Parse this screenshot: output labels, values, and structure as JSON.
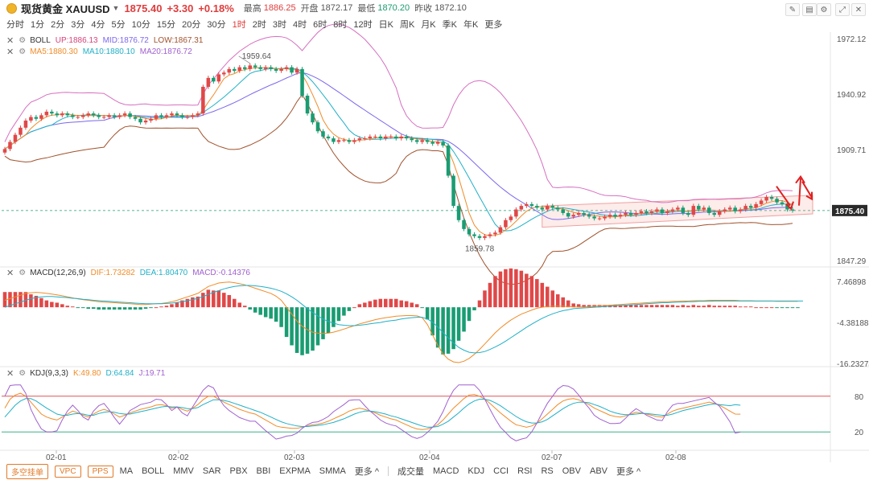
{
  "header": {
    "symbol": "现货黄金 XAUUSD",
    "price": "1875.40",
    "change": "+3.30",
    "change_pct": "+0.18%",
    "high_label": "最高",
    "high": "1886.25",
    "open_label": "开盘",
    "open": "1872.17",
    "low_label": "最低",
    "low": "1870.20",
    "prev_label": "昨收",
    "prev": "1872.10"
  },
  "periods": [
    "分时",
    "1分",
    "2分",
    "3分",
    "4分",
    "5分",
    "10分",
    "15分",
    "20分",
    "30分",
    "1时",
    "2时",
    "3时",
    "4时",
    "6时",
    "8时",
    "12时",
    "日K",
    "周K",
    "月K",
    "季K",
    "年K",
    "更多"
  ],
  "active_period": "1时",
  "indicators": {
    "boll": {
      "name": "BOLL",
      "up": "UP:1886.13",
      "mid": "MID:1876.72",
      "low": "LOW:1867.31"
    },
    "ma": {
      "ma5": "MA5:1880.30",
      "ma10": "MA10:1880.10",
      "ma20": "MA20:1876.72"
    },
    "macd": {
      "name": "MACD(12,26,9)",
      "dif": "DIF:1.73282",
      "dea": "DEA:1.80470",
      "macd": "MACD:-0.14376"
    },
    "kdj": {
      "name": "KDJ(9,3,3)",
      "k": "K:49.80",
      "d": "D:64.84",
      "j": "J:19.71"
    }
  },
  "bottom": {
    "pills": [
      "多空挂单",
      "VPC",
      "PPS"
    ],
    "main_inds": [
      "MA",
      "BOLL",
      "MMV",
      "SAR",
      "PBX",
      "BBI",
      "EXPMA",
      "SMMA",
      "更多 ^"
    ],
    "sub_inds": [
      "成交量",
      "MACD",
      "KDJ",
      "CCI",
      "RSI",
      "RS",
      "OBV",
      "ABV",
      "更多 ^"
    ]
  },
  "chart_data": {
    "type": "candlestick",
    "price_axis": [
      "1972.12",
      "1940.92",
      "1909.71",
      "1875.40",
      "1847.29"
    ],
    "price_range": [
      1847.29,
      1972.12
    ],
    "current_price": "1875.40",
    "annotations": {
      "high": "1959.64",
      "low": "1859.78"
    },
    "x_labels": [
      "02-01",
      "02-02",
      "02-03",
      "02-04",
      "02-07",
      "02-08"
    ],
    "macd_axis": [
      "7.46898",
      "-4.38188",
      "-16.23274"
    ],
    "macd_range": [
      -16.23274,
      7.46898
    ],
    "kdj_axis": [
      "80",
      "20"
    ],
    "kdj_range": [
      0,
      100
    ],
    "closes": [
      1910,
      1914,
      1918,
      1922,
      1926,
      1928,
      1927,
      1929,
      1931,
      1930,
      1929,
      1930,
      1929,
      1928,
      1928,
      1929,
      1930,
      1929,
      1928,
      1928,
      1929,
      1928,
      1929,
      1930,
      1928,
      1927,
      1925,
      1926,
      1927,
      1929,
      1928,
      1929,
      1930,
      1929,
      1928,
      1928,
      1929,
      1930,
      1945,
      1950,
      1948,
      1952,
      1953,
      1955,
      1954,
      1956,
      1955,
      1957,
      1956,
      1955,
      1956,
      1955,
      1954,
      1955,
      1956,
      1953,
      1955,
      1940,
      1930,
      1925,
      1920,
      1917,
      1916,
      1914,
      1915,
      1915,
      1914,
      1915,
      1916,
      1916,
      1917,
      1917,
      1916,
      1917,
      1917,
      1916,
      1917,
      1916,
      1915,
      1914,
      1915,
      1914,
      1913,
      1914,
      1912,
      1895,
      1878,
      1870,
      1865,
      1862,
      1861,
      1860,
      1861,
      1862,
      1863,
      1866,
      1870,
      1872,
      1876,
      1878,
      1879,
      1878,
      1877,
      1876,
      1878,
      1877,
      1876,
      1874,
      1872,
      1873,
      1874,
      1873,
      1872,
      1871,
      1871,
      1872,
      1873,
      1872,
      1873,
      1874,
      1873,
      1874,
      1875,
      1874,
      1875,
      1876,
      1874,
      1875,
      1876,
      1877,
      1874,
      1873,
      1878,
      1876,
      1877,
      1874,
      1873,
      1875,
      1876,
      1877,
      1875,
      1876,
      1878,
      1877,
      1879,
      1881,
      1883,
      1882,
      1880,
      1879,
      1876,
      1875.4
    ],
    "difs": [
      2,
      2.5,
      3,
      3.5,
      4,
      4.2,
      4.3,
      4.2,
      4,
      3.8,
      3.6,
      3.3,
      3,
      2.7,
      2.4,
      2.2,
      2,
      1.8,
      1.6,
      1.5,
      1.4,
      1.3,
      1.2,
      1.1,
      1,
      0.9,
      0.8,
      0.8,
      0.9,
      1,
      1.1,
      1.3,
      1.6,
      2,
      2.5,
      3,
      3.5,
      4,
      5,
      6,
      6.5,
      7,
      7.2,
      7.3,
      7.1,
      6.8,
      6.5,
      6,
      5.5,
      5,
      4.5,
      4,
      3.2,
      2,
      0,
      -2,
      -4,
      -5.5,
      -6.5,
      -7.2,
      -7.5,
      -7.6,
      -7.5,
      -7.2,
      -6.8,
      -6.3,
      -5.8,
      -5.3,
      -4.8,
      -4.4,
      -4,
      -3.6,
      -3.3,
      -3,
      -2.8,
      -2.6,
      -2.5,
      -2.4,
      -2.4,
      -2.5,
      -3,
      -5,
      -8,
      -11,
      -13.5,
      -15,
      -15.8,
      -16,
      -15.6,
      -14.8,
      -13.6,
      -12.2,
      -10.6,
      -9,
      -7.4,
      -6,
      -4.8,
      -3.7,
      -2.8,
      -2,
      -1.4,
      -0.8,
      -0.3,
      0,
      0.2,
      0.3,
      0.3,
      0.3,
      0.2,
      0.1,
      0.1,
      0.1,
      0.2,
      0.3,
      0.4,
      0.5,
      0.6,
      0.7,
      0.8,
      0.9,
      1,
      1.1,
      1.2,
      1.3,
      1.4,
      1.5,
      1.6,
      1.6,
      1.7,
      1.7,
      1.8,
      1.8,
      1.9,
      1.9,
      1.9,
      2,
      2,
      2,
      2,
      2,
      2,
      1.9,
      1.9,
      1.9,
      1.8,
      1.8,
      1.8,
      1.8,
      1.7,
      1.7,
      1.7,
      1.7,
      1.73
    ],
    "deas": [
      0,
      0.5,
      1,
      1.5,
      2,
      2.5,
      2.8,
      3,
      3.1,
      3.1,
      3,
      2.9,
      2.8,
      2.6,
      2.5,
      2.3,
      2.2,
      2,
      1.9,
      1.8,
      1.7,
      1.6,
      1.5,
      1.4,
      1.3,
      1.2,
      1.1,
      1,
      1,
      1,
      1,
      1.1,
      1.2,
      1.4,
      1.6,
      1.9,
      2.2,
      2.6,
      3.1,
      3.7,
      4.3,
      4.8,
      5.3,
      5.7,
      6,
      6.2,
      6.3,
      6.3,
      6.2,
      6,
      5.8,
      5.5,
      5.1,
      4.6,
      3.9,
      3,
      2,
      0.8,
      -0.4,
      -1.5,
      -2.5,
      -3.4,
      -4.1,
      -4.6,
      -5,
      -5.2,
      -5.3,
      -5.3,
      -5.2,
      -5,
      -4.8,
      -4.6,
      -4.4,
      -4.1,
      -3.9,
      -3.7,
      -3.4,
      -3.2,
      -3,
      -2.9,
      -2.9,
      -3.4,
      -4.3,
      -5.7,
      -7.3,
      -8.9,
      -10.3,
      -11.6,
      -12.4,
      -13,
      -13.2,
      -13.1,
      -12.8,
      -12.2,
      -11.5,
      -10.7,
      -9.8,
      -8.8,
      -7.8,
      -6.8,
      -5.8,
      -4.9,
      -4,
      -3.2,
      -2.5,
      -1.9,
      -1.4,
      -1,
      -0.7,
      -0.4,
      -0.3,
      -0.2,
      -0.1,
      0,
      0.1,
      0.2,
      0.3,
      0.4,
      0.5,
      0.6,
      0.7,
      0.8,
      0.9,
      1,
      1.1,
      1.2,
      1.3,
      1.3,
      1.4,
      1.5,
      1.5,
      1.6,
      1.6,
      1.7,
      1.7,
      1.7,
      1.8,
      1.8,
      1.8,
      1.8,
      1.8,
      1.8,
      1.8,
      1.8,
      1.8,
      1.8,
      1.8,
      1.8,
      1.8,
      1.8,
      1.8,
      1.8,
      1.8,
      1.805
    ],
    "ks": [
      60,
      75,
      82,
      85,
      80,
      70,
      60,
      50,
      45,
      42,
      40,
      45,
      50,
      55,
      52,
      48,
      45,
      50,
      55,
      58,
      55,
      50,
      45,
      48,
      52,
      55,
      58,
      60,
      62,
      65,
      66,
      64,
      60,
      62,
      58,
      55,
      60,
      66,
      74,
      80,
      80,
      75,
      70,
      66,
      62,
      58,
      55,
      52,
      50,
      45,
      40,
      35,
      30,
      28,
      27,
      26,
      26,
      28,
      30,
      32,
      33,
      35,
      38,
      42,
      46,
      50,
      55,
      58,
      60,
      58,
      55,
      52,
      48,
      45,
      42,
      40,
      36,
      32,
      28,
      25,
      24,
      25,
      28,
      32,
      40,
      50,
      60,
      68,
      76,
      82,
      83,
      80,
      75,
      68,
      60,
      52,
      45,
      38,
      32,
      30,
      28,
      30,
      35,
      42,
      50,
      58,
      66,
      72,
      75,
      76,
      74,
      70,
      66,
      60,
      56,
      52,
      48,
      46,
      45,
      47,
      50,
      53,
      52,
      50,
      48,
      46,
      45,
      50,
      55,
      58,
      60,
      62,
      64,
      66,
      68,
      70,
      68,
      65,
      60,
      55,
      50,
      49.8
    ],
    "ds": [
      45,
      55,
      65,
      72,
      76,
      76,
      72,
      66,
      60,
      55,
      50,
      48,
      48,
      50,
      51,
      50,
      48,
      48,
      51,
      53,
      54,
      53,
      51,
      50,
      50,
      52,
      54,
      56,
      58,
      60,
      62,
      63,
      62,
      62,
      61,
      59,
      59,
      61,
      66,
      70,
      74,
      74,
      73,
      71,
      68,
      65,
      62,
      59,
      56,
      53,
      49,
      45,
      41,
      37,
      34,
      32,
      30,
      29,
      29,
      30,
      31,
      32,
      34,
      36,
      39,
      42,
      46,
      50,
      53,
      55,
      55,
      54,
      52,
      50,
      47,
      45,
      42,
      39,
      36,
      33,
      30,
      28,
      28,
      29,
      33,
      38,
      45,
      52,
      60,
      67,
      72,
      75,
      75,
      73,
      69,
      64,
      58,
      52,
      46,
      41,
      37,
      35,
      35,
      37,
      41,
      47,
      53,
      59,
      64,
      68,
      70,
      70,
      69,
      66,
      63,
      59,
      55,
      52,
      50,
      49,
      49,
      50,
      51,
      51,
      50,
      49,
      48,
      48,
      50,
      53,
      56,
      58,
      60,
      62,
      64,
      66,
      67,
      66,
      65,
      64,
      66,
      64.84
    ],
    "js": [
      80,
      98,
      99,
      99,
      85,
      58,
      40,
      25,
      20,
      20,
      22,
      40,
      55,
      65,
      56,
      45,
      40,
      55,
      64,
      68,
      57,
      44,
      33,
      44,
      56,
      61,
      66,
      68,
      70,
      75,
      74,
      66,
      56,
      62,
      52,
      47,
      62,
      76,
      90,
      98,
      94,
      77,
      64,
      56,
      50,
      44,
      41,
      38,
      38,
      30,
      22,
      15,
      8,
      10,
      13,
      14,
      18,
      26,
      32,
      36,
      37,
      41,
      46,
      54,
      60,
      66,
      73,
      74,
      74,
      64,
      55,
      48,
      40,
      35,
      32,
      30,
      24,
      18,
      12,
      9,
      12,
      19,
      28,
      38,
      54,
      74,
      90,
      99,
      99,
      99,
      99,
      90,
      75,
      58,
      42,
      28,
      19,
      10,
      5,
      8,
      10,
      20,
      35,
      52,
      68,
      80,
      92,
      98,
      97,
      92,
      82,
      70,
      60,
      48,
      42,
      38,
      34,
      34,
      35,
      43,
      52,
      59,
      54,
      48,
      44,
      40,
      39,
      54,
      65,
      68,
      68,
      70,
      72,
      74,
      76,
      78,
      70,
      63,
      50,
      37,
      18,
      19.71
    ]
  }
}
